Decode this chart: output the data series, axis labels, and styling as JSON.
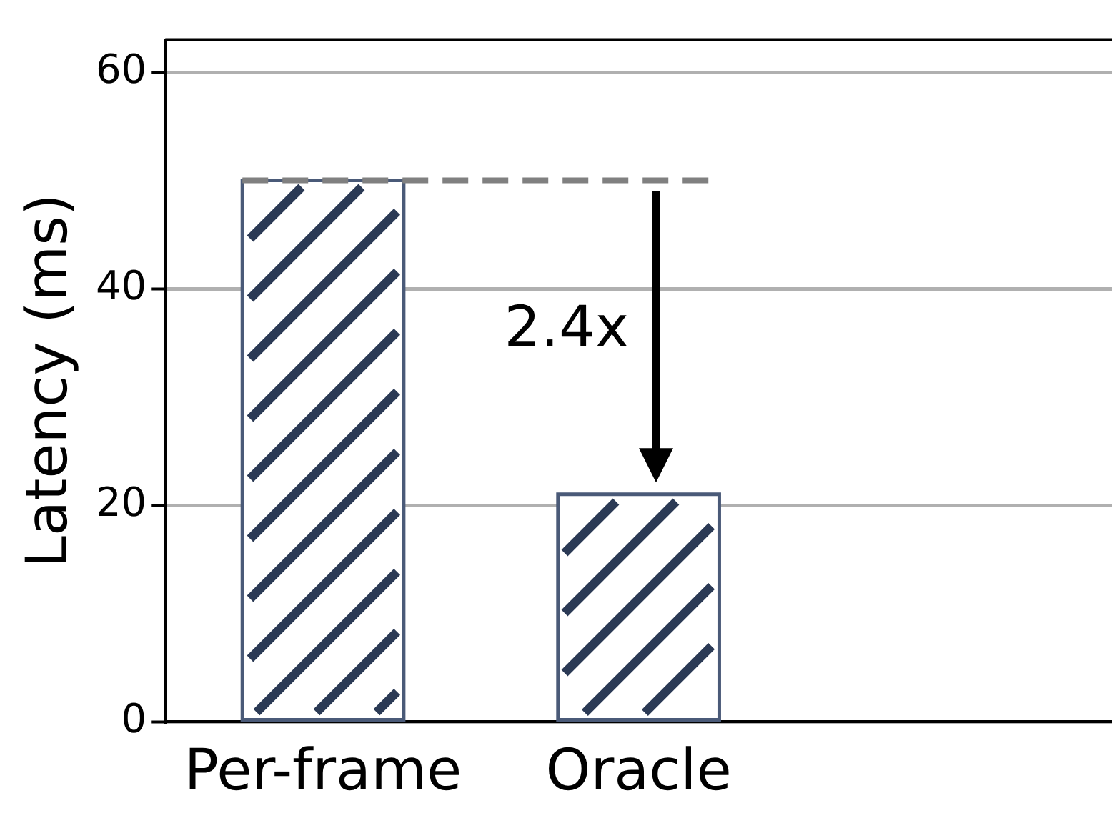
{
  "chart_data": {
    "type": "bar",
    "ylabel": "Latency (ms)",
    "categories": [
      "Per-frame",
      "Oracle",
      null
    ],
    "values": [
      50,
      21,
      null
    ],
    "color": "#ffffff",
    "ylim": [
      0,
      63
    ],
    "yticks": [
      0,
      20,
      40,
      60
    ],
    "grid": "y",
    "legend": false,
    "ref_lines": [
      {
        "axis": "y",
        "value": 50,
        "color": "#808080",
        "line_style": "dashed"
      }
    ],
    "annotations": [
      "2.4x"
    ]
  }
}
